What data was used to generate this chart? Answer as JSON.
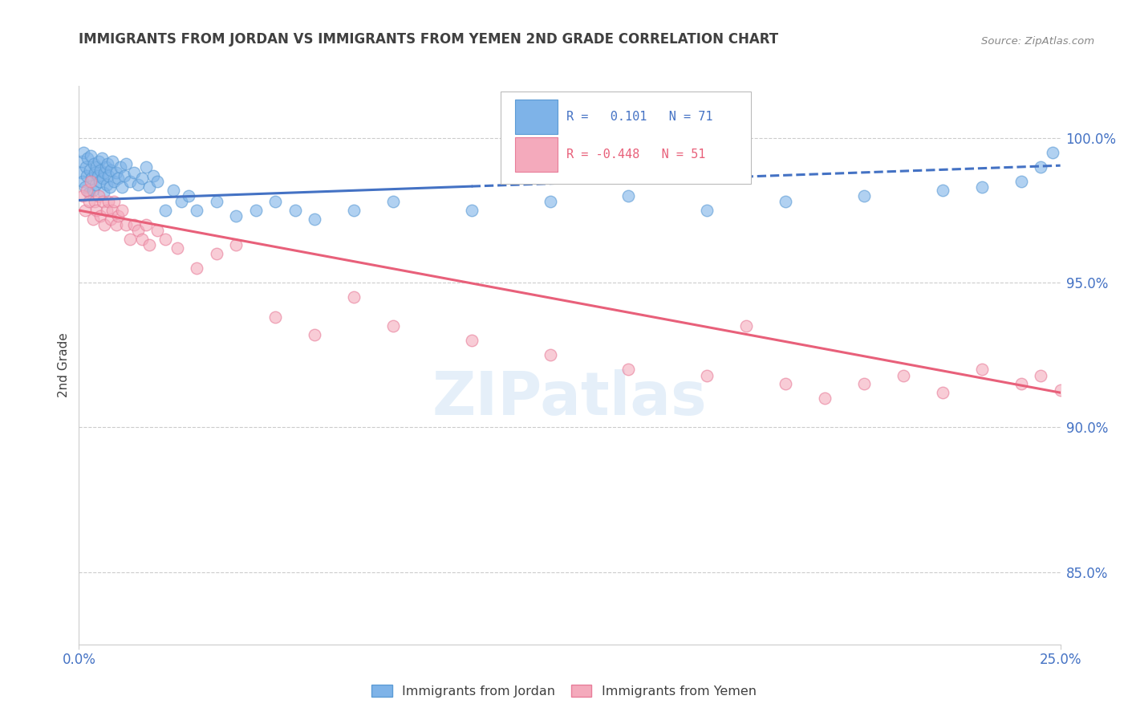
{
  "title": "IMMIGRANTS FROM JORDAN VS IMMIGRANTS FROM YEMEN 2ND GRADE CORRELATION CHART",
  "source": "Source: ZipAtlas.com",
  "ylabel": "2nd Grade",
  "y_ticks": [
    85.0,
    90.0,
    95.0,
    100.0
  ],
  "x_ticks_labels": [
    "0.0%",
    "25.0%"
  ],
  "x_min": 0.0,
  "x_max": 25.0,
  "y_min": 82.5,
  "y_max": 101.8,
  "jordan_R": 0.101,
  "jordan_N": 71,
  "yemen_R": -0.448,
  "yemen_N": 51,
  "jordan_dot_color": "#7EB3E8",
  "jordan_dot_edge": "#5B9BD5",
  "yemen_dot_color": "#F4AABC",
  "yemen_dot_edge": "#E87D99",
  "jordan_line_color": "#4472C4",
  "yemen_line_color": "#E8607A",
  "grid_color": "#CCCCCC",
  "axis_tick_color": "#4472C4",
  "title_color": "#404040",
  "source_color": "#888888",
  "watermark_color": "#AACCEE",
  "background_color": "#FFFFFF",
  "legend_box_color": "#BBBBBB",
  "jordan_scatter_x": [
    0.05,
    0.08,
    0.1,
    0.12,
    0.15,
    0.18,
    0.2,
    0.22,
    0.25,
    0.28,
    0.3,
    0.32,
    0.35,
    0.38,
    0.4,
    0.42,
    0.45,
    0.48,
    0.5,
    0.52,
    0.55,
    0.58,
    0.6,
    0.62,
    0.65,
    0.68,
    0.7,
    0.72,
    0.75,
    0.78,
    0.8,
    0.85,
    0.9,
    0.95,
    1.0,
    1.05,
    1.1,
    1.15,
    1.2,
    1.3,
    1.4,
    1.5,
    1.6,
    1.7,
    1.8,
    1.9,
    2.0,
    2.2,
    2.4,
    2.6,
    2.8,
    3.0,
    3.5,
    4.0,
    4.5,
    5.0,
    5.5,
    6.0,
    7.0,
    8.0,
    10.0,
    12.0,
    14.0,
    16.0,
    18.0,
    20.0,
    22.0,
    23.0,
    24.0,
    24.5,
    24.8
  ],
  "jordan_scatter_y": [
    98.8,
    99.2,
    98.5,
    99.5,
    98.3,
    99.0,
    98.7,
    99.3,
    98.1,
    98.9,
    99.4,
    98.6,
    98.2,
    99.1,
    98.8,
    98.4,
    99.0,
    98.7,
    99.2,
    98.5,
    98.9,
    99.3,
    98.6,
    98.1,
    98.8,
    99.0,
    98.4,
    99.1,
    98.7,
    98.3,
    98.9,
    99.2,
    98.5,
    98.8,
    98.6,
    99.0,
    98.3,
    98.7,
    99.1,
    98.5,
    98.8,
    98.4,
    98.6,
    99.0,
    98.3,
    98.7,
    98.5,
    97.5,
    98.2,
    97.8,
    98.0,
    97.5,
    97.8,
    97.3,
    97.5,
    97.8,
    97.5,
    97.2,
    97.5,
    97.8,
    97.5,
    97.8,
    98.0,
    97.5,
    97.8,
    98.0,
    98.2,
    98.3,
    98.5,
    99.0,
    99.5
  ],
  "yemen_scatter_x": [
    0.1,
    0.15,
    0.2,
    0.25,
    0.3,
    0.35,
    0.4,
    0.45,
    0.5,
    0.55,
    0.6,
    0.65,
    0.7,
    0.75,
    0.8,
    0.85,
    0.9,
    0.95,
    1.0,
    1.1,
    1.2,
    1.3,
    1.4,
    1.5,
    1.6,
    1.7,
    1.8,
    2.0,
    2.2,
    2.5,
    3.0,
    3.5,
    4.0,
    5.0,
    6.0,
    7.0,
    8.0,
    10.0,
    12.0,
    14.0,
    16.0,
    17.0,
    18.0,
    19.0,
    20.0,
    21.0,
    22.0,
    23.0,
    24.0,
    24.5,
    25.0
  ],
  "yemen_scatter_y": [
    98.0,
    97.5,
    98.2,
    97.8,
    98.5,
    97.2,
    97.8,
    97.5,
    98.0,
    97.3,
    97.8,
    97.0,
    97.5,
    97.8,
    97.2,
    97.5,
    97.8,
    97.0,
    97.3,
    97.5,
    97.0,
    96.5,
    97.0,
    96.8,
    96.5,
    97.0,
    96.3,
    96.8,
    96.5,
    96.2,
    95.5,
    96.0,
    96.3,
    93.8,
    93.2,
    94.5,
    93.5,
    93.0,
    92.5,
    92.0,
    91.8,
    93.5,
    91.5,
    91.0,
    91.5,
    91.8,
    91.2,
    92.0,
    91.5,
    91.8,
    91.3
  ]
}
